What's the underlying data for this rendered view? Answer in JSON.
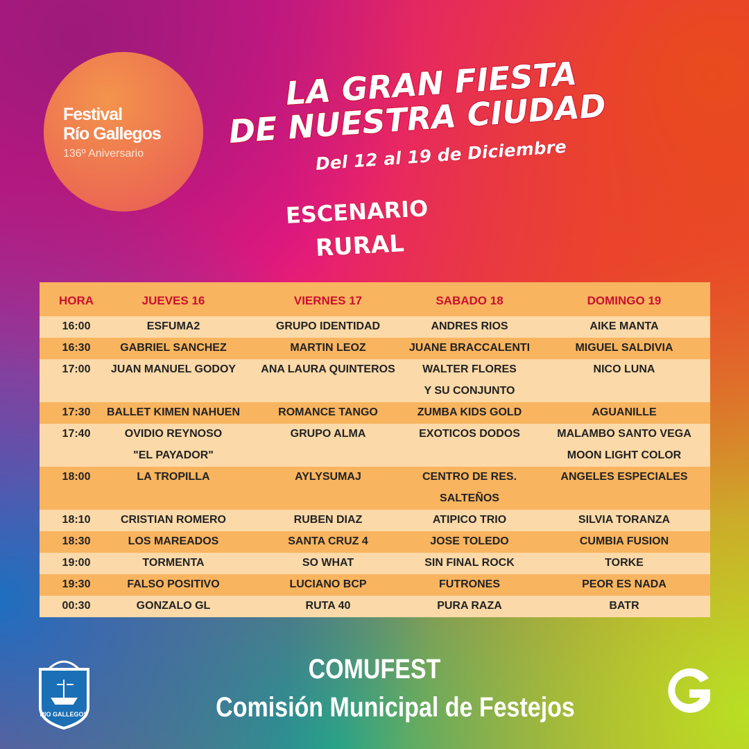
{
  "logo": {
    "line1": "Festival",
    "line2": "Río Gallegos",
    "line3": "136º Aniversario"
  },
  "headline": {
    "line1": "LA GRAN FIESTA",
    "line2": "DE NUESTRA CIUDAD",
    "date": "Del 12 al 19 de Diciembre"
  },
  "stage": {
    "line1": "ESCENARIO",
    "line2": "RURAL"
  },
  "table": {
    "headers": [
      "HORA",
      "JUEVES 16",
      "VIERNES 17",
      "SABADO 18",
      "DOMINGO 19"
    ],
    "rows": [
      {
        "hora": "16:00",
        "cells": [
          [
            "ESFUMA2"
          ],
          [
            "GRUPO IDENTIDAD"
          ],
          [
            "ANDRES RIOS"
          ],
          [
            "AIKE MANTA"
          ]
        ]
      },
      {
        "hora": "16:30",
        "cells": [
          [
            "GABRIEL SANCHEZ"
          ],
          [
            "MARTIN LEOZ"
          ],
          [
            "JUANE BRACCALENTI"
          ],
          [
            "MIGUEL SALDIVIA"
          ]
        ]
      },
      {
        "hora": "17:00",
        "cells": [
          [
            "JUAN MANUEL GODOY"
          ],
          [
            "ANA LAURA QUINTEROS"
          ],
          [
            "WALTER FLORES",
            "Y SU CONJUNTO"
          ],
          [
            "NICO LUNA"
          ]
        ]
      },
      {
        "hora": "17:30",
        "cells": [
          [
            "BALLET KIMEN NAHUEN"
          ],
          [
            "ROMANCE TANGO"
          ],
          [
            "ZUMBA KIDS GOLD"
          ],
          [
            "AGUANILLE"
          ]
        ]
      },
      {
        "hora": "17:40",
        "cells": [
          [
            "OVIDIO REYNOSO",
            "\"EL PAYADOR\""
          ],
          [
            "GRUPO ALMA"
          ],
          [
            "EXOTICOS DODOS"
          ],
          [
            "MALAMBO SANTO VEGA",
            "MOON LIGHT COLOR"
          ]
        ]
      },
      {
        "hora": "18:00",
        "cells": [
          [
            "LA TROPILLA"
          ],
          [
            "AYLYSUMAJ"
          ],
          [
            "CENTRO DE RES.",
            "SALTEÑOS"
          ],
          [
            "ANGELES ESPECIALES"
          ]
        ]
      },
      {
        "hora": "18:10",
        "cells": [
          [
            "CRISTIAN ROMERO"
          ],
          [
            "RUBEN DIAZ"
          ],
          [
            "ATIPICO TRIO"
          ],
          [
            "SILVIA TORANZA"
          ]
        ]
      },
      {
        "hora": "18:30",
        "cells": [
          [
            "LOS MAREADOS"
          ],
          [
            "SANTA CRUZ 4"
          ],
          [
            "JOSE TOLEDO"
          ],
          [
            "CUMBIA FUSION"
          ]
        ]
      },
      {
        "hora": "19:00",
        "cells": [
          [
            "TORMENTA"
          ],
          [
            "SO WHAT"
          ],
          [
            "SIN FINAL ROCK"
          ],
          [
            "TORKE"
          ]
        ]
      },
      {
        "hora": "19:30",
        "cells": [
          [
            "FALSO POSITIVO"
          ],
          [
            "LUCIANO BCP"
          ],
          [
            "FUTRONES"
          ],
          [
            "PEOR ES NADA"
          ]
        ]
      },
      {
        "hora": "00:30",
        "cells": [
          [
            "GONZALO GL"
          ],
          [
            "RUTA 40"
          ],
          [
            "PURA RAZA"
          ],
          [
            "BATR"
          ]
        ]
      }
    ]
  },
  "footer": {
    "crest": "RIO GALLEGOS",
    "line1": "COMUFEST",
    "line2": "Comisión Municipal de Festejos"
  }
}
